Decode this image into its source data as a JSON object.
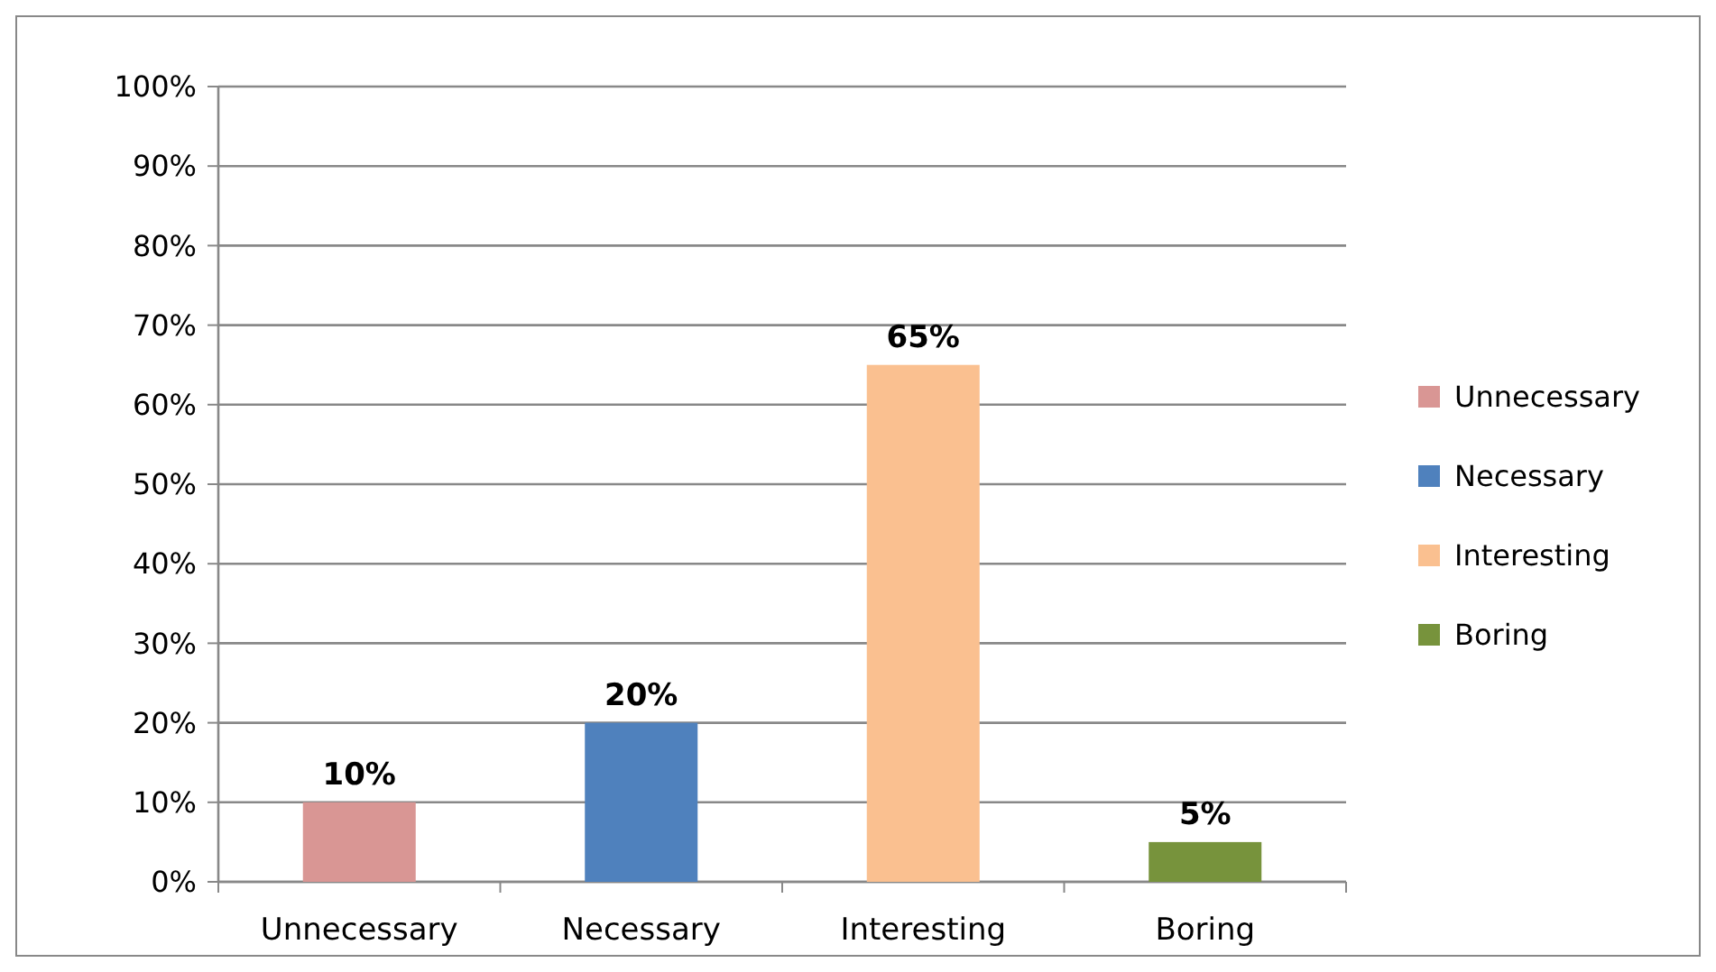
{
  "chart_data": {
    "type": "bar",
    "categories": [
      "Unnecessary",
      "Necessary",
      "Interesting",
      "Boring"
    ],
    "stacked": true,
    "series": [
      {
        "name": "Unnecessary",
        "color": "#d99694",
        "values": [
          10,
          null,
          null,
          null
        ],
        "value_labels": [
          "10%",
          null,
          null,
          null
        ]
      },
      {
        "name": "Necessary",
        "color": "#4f81bd",
        "values": [
          null,
          20,
          null,
          null
        ],
        "value_labels": [
          null,
          "20%",
          null,
          null
        ]
      },
      {
        "name": "Interesting",
        "color": "#fac090",
        "values": [
          null,
          null,
          65,
          null
        ],
        "value_labels": [
          null,
          null,
          "65%",
          null
        ]
      },
      {
        "name": "Boring",
        "color": "#77933c",
        "values": [
          null,
          null,
          null,
          5
        ],
        "value_labels": [
          null,
          null,
          null,
          "5%"
        ]
      }
    ],
    "ylim": [
      0,
      100
    ],
    "yticks": [
      {
        "value": 0,
        "label": "0%"
      },
      {
        "value": 10,
        "label": "10%"
      },
      {
        "value": 20,
        "label": "20%"
      },
      {
        "value": 30,
        "label": "30%"
      },
      {
        "value": 40,
        "label": "40%"
      },
      {
        "value": 50,
        "label": "50%"
      },
      {
        "value": 60,
        "label": "60%"
      },
      {
        "value": 70,
        "label": "70%"
      },
      {
        "value": 80,
        "label": "80%"
      },
      {
        "value": 90,
        "label": "90%"
      },
      {
        "value": 100,
        "label": "100%"
      }
    ],
    "grid": "y",
    "legend": "right"
  }
}
